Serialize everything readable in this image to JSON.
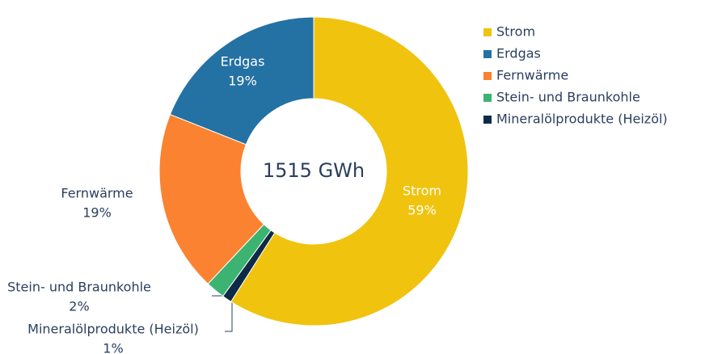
{
  "chart_data": {
    "type": "donut",
    "center_text": "1515 GWh",
    "categories": [
      "Strom",
      "Erdgas",
      "Fernwärme",
      "Stein- und Braunkohle",
      "Mineralölprodukte (Heizöl)"
    ],
    "values": [
      59,
      19,
      19,
      2,
      1
    ],
    "value_labels": [
      "59%",
      "19%",
      "19%",
      "2%",
      "1%"
    ],
    "colors": [
      "#f0c30f",
      "#2471a3",
      "#fb8230",
      "#3cb371",
      "#0e2a47"
    ]
  }
}
